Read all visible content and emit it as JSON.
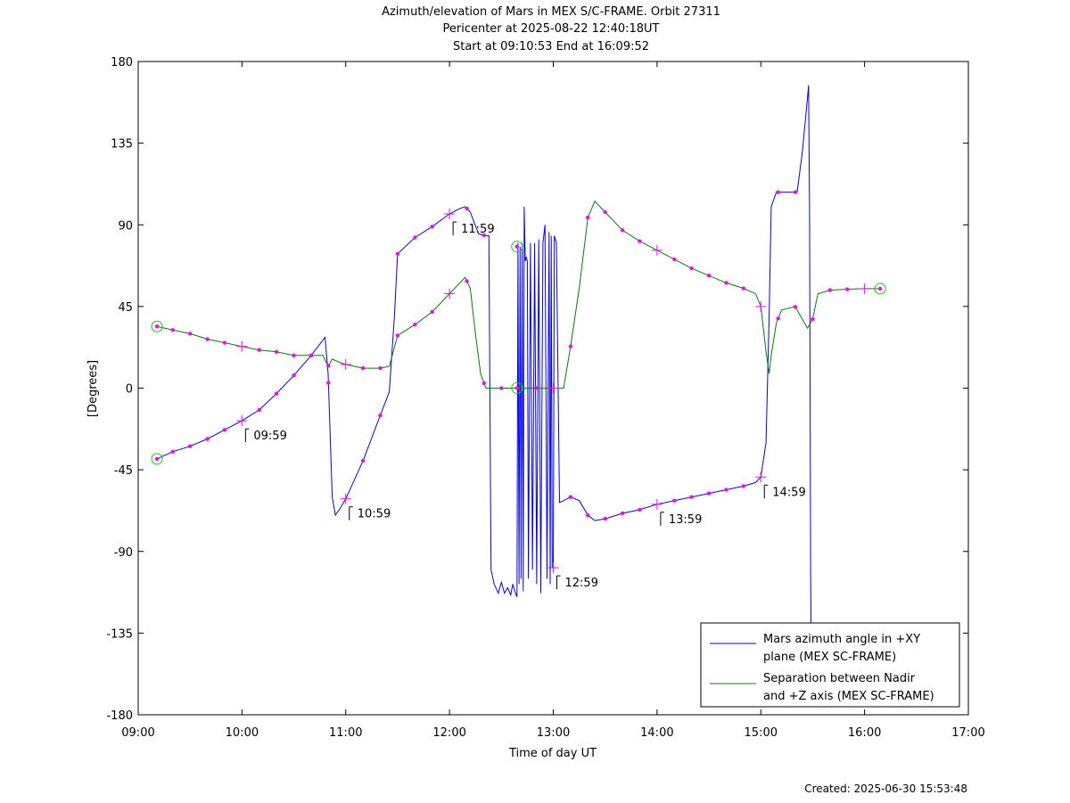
{
  "title_lines": [
    "Azimuth/elevation of Mars in MEX S/C-FRAME.  Orbit 27311",
    "Pericenter at 2025-08-22 12:40:18UT",
    "Start at 09:10:53 End at 16:09:52"
  ],
  "footer": "Created: 2025-06-30 15:53:48",
  "colors": {
    "azimuth": "#0000ff",
    "separation": "#008000",
    "marker": "#ff00ff",
    "endpoint": "#00dd00",
    "axis": "#000000"
  },
  "chart_data": {
    "type": "line",
    "xlabel": "Time of day UT",
    "ylabel": "[Degrees]",
    "x_unit": "hours of day UT",
    "xlim": [
      9,
      17
    ],
    "ylim": [
      -180,
      180
    ],
    "x_ticks": [
      {
        "v": 9,
        "label": "09:00"
      },
      {
        "v": 10,
        "label": "10:00"
      },
      {
        "v": 11,
        "label": "11:00"
      },
      {
        "v": 12,
        "label": "12:00"
      },
      {
        "v": 13,
        "label": "13:00"
      },
      {
        "v": 14,
        "label": "14:00"
      },
      {
        "v": 15,
        "label": "15:00"
      },
      {
        "v": 16,
        "label": "16:00"
      },
      {
        "v": 17,
        "label": "17:00"
      }
    ],
    "y_ticks": [
      {
        "v": 180,
        "label": "180"
      },
      {
        "v": 135,
        "label": "135"
      },
      {
        "v": 90,
        "label": "90"
      },
      {
        "v": 45,
        "label": "45"
      },
      {
        "v": 0,
        "label": "0"
      },
      {
        "v": -45,
        "label": "-45"
      },
      {
        "v": -90,
        "label": "-90"
      },
      {
        "v": -135,
        "label": "-135"
      },
      {
        "v": -180,
        "label": "-180"
      }
    ],
    "legend_position": "bottom-right",
    "series": [
      {
        "name": "Mars azimuth angle in +XY plane (MEX SC-FRAME)",
        "legend_lines": [
          "Mars azimuth angle in +XY",
          "plane (MEX SC-FRAME)"
        ],
        "points": [
          [
            9.181,
            -39
          ],
          [
            9.333,
            -35
          ],
          [
            9.5,
            -32
          ],
          [
            9.667,
            -28
          ],
          [
            9.833,
            -23
          ],
          [
            10.0,
            -18
          ],
          [
            10.167,
            -12
          ],
          [
            10.333,
            -3
          ],
          [
            10.5,
            7
          ],
          [
            10.667,
            18
          ],
          [
            10.8,
            28
          ],
          [
            10.83,
            8
          ],
          [
            10.87,
            -60
          ],
          [
            10.9,
            -70
          ],
          [
            10.95,
            -66
          ],
          [
            11.0,
            -61
          ],
          [
            11.167,
            -40
          ],
          [
            11.333,
            -15
          ],
          [
            11.42,
            -2
          ],
          [
            11.47,
            40
          ],
          [
            11.5,
            74
          ],
          [
            11.667,
            83
          ],
          [
            11.833,
            89
          ],
          [
            12.0,
            96
          ],
          [
            12.1,
            99
          ],
          [
            12.15,
            100
          ],
          [
            12.2,
            97
          ],
          [
            12.28,
            85
          ],
          [
            12.35,
            84
          ],
          [
            12.38,
            84
          ],
          [
            12.4,
            -100
          ],
          [
            12.43,
            -108
          ],
          [
            12.47,
            -113
          ],
          [
            12.5,
            -107
          ],
          [
            12.53,
            -113
          ],
          [
            12.56,
            -110
          ],
          [
            12.59,
            -114
          ],
          [
            12.61,
            -108
          ],
          [
            12.63,
            -112
          ],
          [
            12.65,
            -115
          ],
          [
            12.66,
            80
          ],
          [
            12.67,
            -108
          ],
          [
            12.68,
            78
          ],
          [
            12.69,
            -105
          ],
          [
            12.7,
            80
          ],
          [
            12.71,
            -112
          ],
          [
            12.72,
            100
          ],
          [
            12.73,
            70
          ],
          [
            12.74,
            72
          ],
          [
            12.75,
            70
          ],
          [
            12.76,
            -105
          ],
          [
            12.78,
            80
          ],
          [
            12.8,
            -100
          ],
          [
            12.82,
            80
          ],
          [
            12.84,
            -108
          ],
          [
            12.86,
            82
          ],
          [
            12.88,
            -113
          ],
          [
            12.9,
            80
          ],
          [
            12.92,
            90
          ],
          [
            12.94,
            -105
          ],
          [
            12.96,
            86
          ],
          [
            12.97,
            -108
          ],
          [
            12.98,
            84
          ],
          [
            12.99,
            -99
          ],
          [
            13.0,
            -99
          ],
          [
            13.01,
            84
          ],
          [
            13.03,
            80
          ],
          [
            13.06,
            -63
          ],
          [
            13.1,
            -62
          ],
          [
            13.167,
            -60
          ],
          [
            13.25,
            -62
          ],
          [
            13.333,
            -70
          ],
          [
            13.4,
            -73
          ],
          [
            13.5,
            -72
          ],
          [
            13.667,
            -69
          ],
          [
            13.833,
            -67
          ],
          [
            14.0,
            -64
          ],
          [
            14.167,
            -62
          ],
          [
            14.333,
            -60
          ],
          [
            14.5,
            -58
          ],
          [
            14.667,
            -56
          ],
          [
            14.833,
            -54
          ],
          [
            14.95,
            -52
          ],
          [
            15.0,
            -49
          ],
          [
            15.05,
            -30
          ],
          [
            15.08,
            40
          ],
          [
            15.1,
            100
          ],
          [
            15.15,
            108
          ],
          [
            15.2,
            108
          ],
          [
            15.35,
            108
          ],
          [
            15.4,
            130
          ],
          [
            15.45,
            160
          ],
          [
            15.46,
            167
          ],
          [
            15.47,
            100
          ],
          [
            15.48,
            -100
          ],
          [
            15.485,
            -135
          ]
        ]
      },
      {
        "name": "Separation between Nadir and +Z axis (MEX SC-FRAME)",
        "legend_lines": [
          "Separation between Nadir",
          "and +Z axis (MEX SC-FRAME)"
        ],
        "points": [
          [
            9.181,
            34
          ],
          [
            9.333,
            32
          ],
          [
            9.5,
            30
          ],
          [
            9.667,
            27
          ],
          [
            9.833,
            25
          ],
          [
            10.0,
            23
          ],
          [
            10.167,
            21
          ],
          [
            10.333,
            20
          ],
          [
            10.5,
            18
          ],
          [
            10.667,
            18
          ],
          [
            10.78,
            18
          ],
          [
            10.83,
            12
          ],
          [
            10.87,
            16
          ],
          [
            10.95,
            14
          ],
          [
            11.0,
            13
          ],
          [
            11.167,
            11
          ],
          [
            11.333,
            11
          ],
          [
            11.42,
            12
          ],
          [
            11.5,
            29
          ],
          [
            11.667,
            35
          ],
          [
            11.833,
            42
          ],
          [
            12.0,
            52
          ],
          [
            12.1,
            58
          ],
          [
            12.15,
            61
          ],
          [
            12.2,
            55
          ],
          [
            12.25,
            30
          ],
          [
            12.3,
            8
          ],
          [
            12.35,
            0
          ],
          [
            12.5,
            0
          ],
          [
            12.65,
            0
          ],
          [
            13.0,
            0
          ],
          [
            13.1,
            0
          ],
          [
            13.167,
            23
          ],
          [
            13.25,
            55
          ],
          [
            13.333,
            94
          ],
          [
            13.4,
            103
          ],
          [
            13.5,
            97
          ],
          [
            13.667,
            87
          ],
          [
            13.833,
            81
          ],
          [
            14.0,
            76
          ],
          [
            14.167,
            71
          ],
          [
            14.333,
            66
          ],
          [
            14.5,
            62
          ],
          [
            14.667,
            58
          ],
          [
            14.833,
            55
          ],
          [
            14.95,
            52
          ],
          [
            15.0,
            45
          ],
          [
            15.05,
            20
          ],
          [
            15.08,
            8
          ],
          [
            15.1,
            18
          ],
          [
            15.15,
            36
          ],
          [
            15.2,
            43
          ],
          [
            15.33,
            45
          ],
          [
            15.4,
            38
          ],
          [
            15.45,
            33
          ],
          [
            15.5,
            38
          ],
          [
            15.55,
            52
          ],
          [
            15.667,
            54
          ],
          [
            15.833,
            54.5
          ],
          [
            16.0,
            54.8
          ],
          [
            16.15,
            54.8
          ]
        ]
      }
    ],
    "dot_markers": [
      {
        "series": 0,
        "x": [
          9.333,
          9.5,
          9.667,
          9.833,
          10.167,
          10.333,
          10.5,
          10.667,
          10.833,
          11.167,
          11.333,
          11.5,
          11.667,
          11.833,
          12.167,
          12.333,
          13.167,
          13.333,
          13.5,
          13.667,
          13.833,
          14.167,
          14.333,
          14.5,
          14.667,
          14.833,
          15.167,
          15.333
        ]
      },
      {
        "series": 1,
        "x": [
          9.333,
          9.5,
          9.667,
          9.833,
          10.167,
          10.333,
          10.5,
          10.667,
          10.833,
          11.167,
          11.333,
          11.5,
          11.667,
          11.833,
          12.167,
          12.333,
          12.5,
          12.833,
          13.167,
          13.333,
          13.5,
          13.667,
          13.833,
          14.167,
          14.333,
          14.5,
          14.667,
          14.833,
          15.167,
          15.333,
          15.5,
          15.667,
          15.833
        ]
      }
    ],
    "plus_markers": [
      {
        "series": 0,
        "x": [
          10.0,
          11.0,
          12.0,
          13.0,
          14.0,
          15.0
        ]
      },
      {
        "series": 1,
        "x": [
          10.0,
          11.0,
          12.0,
          13.0,
          14.0,
          15.0,
          16.0
        ]
      }
    ],
    "endpoint_markers": [
      {
        "x": 9.181,
        "y": -39
      },
      {
        "x": 9.181,
        "y": 34
      },
      {
        "x": 12.65,
        "y": 78
      },
      {
        "x": 12.65,
        "y": 0
      },
      {
        "x": 16.15,
        "y": 54.8
      }
    ],
    "annotations": [
      {
        "x": 10.0,
        "y": -18,
        "label": "09:59"
      },
      {
        "x": 11.0,
        "y": -61,
        "label": "10:59"
      },
      {
        "x": 12.0,
        "y": 96,
        "label": "11:59"
      },
      {
        "x": 13.0,
        "y": -99,
        "label": "12:59"
      },
      {
        "x": 14.0,
        "y": -64,
        "label": "13:59"
      },
      {
        "x": 15.0,
        "y": -49,
        "label": "14:59"
      }
    ]
  }
}
